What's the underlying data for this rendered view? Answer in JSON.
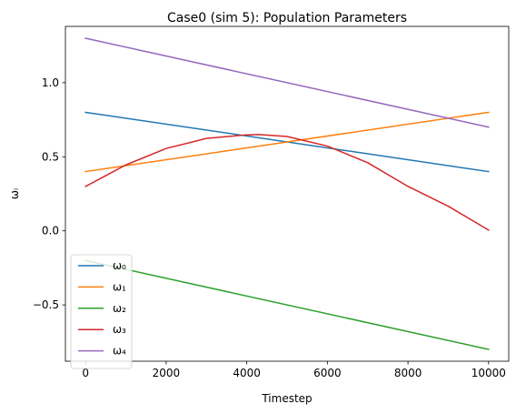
{
  "chart_data": {
    "type": "line",
    "title": "Case0 (sim 5): Population Parameters",
    "xlabel": "Timestep",
    "ylabel": "ωᵢ",
    "xlim": [
      -500,
      10500
    ],
    "ylim": [
      -0.88,
      1.38
    ],
    "x_ticks": [
      0,
      2000,
      4000,
      6000,
      8000,
      10000
    ],
    "x_tick_labels": [
      "0",
      "2000",
      "4000",
      "6000",
      "8000",
      "10000"
    ],
    "y_ticks": [
      -0.5,
      0.0,
      0.5,
      1.0
    ],
    "y_tick_labels": [
      "−0.5",
      "0.0",
      "0.5",
      "1.0"
    ],
    "grid": false,
    "legend_position": "lower-left",
    "series": [
      {
        "name": "ω₀",
        "color": "#1f77b4",
        "x": [
          0,
          10000
        ],
        "values": [
          0.8,
          0.4
        ]
      },
      {
        "name": "ω₁",
        "color": "#ff7f0e",
        "x": [
          0,
          10000
        ],
        "values": [
          0.4,
          0.8
        ]
      },
      {
        "name": "ω₂",
        "color": "#2ca02c",
        "x": [
          0,
          10000
        ],
        "values": [
          -0.2,
          -0.8
        ]
      },
      {
        "name": "ω₃",
        "color": "#d62728",
        "x": [
          0,
          1000,
          2000,
          3000,
          4000,
          4300,
          5000,
          6000,
          7000,
          8000,
          9000,
          10000
        ],
        "values": [
          0.3,
          0.445,
          0.556,
          0.624,
          0.648,
          0.65,
          0.637,
          0.572,
          0.46,
          0.3,
          0.166,
          0.005
        ]
      },
      {
        "name": "ω₄",
        "color": "#9467bd",
        "x": [
          0,
          10000
        ],
        "values": [
          1.3,
          0.7
        ]
      }
    ]
  }
}
